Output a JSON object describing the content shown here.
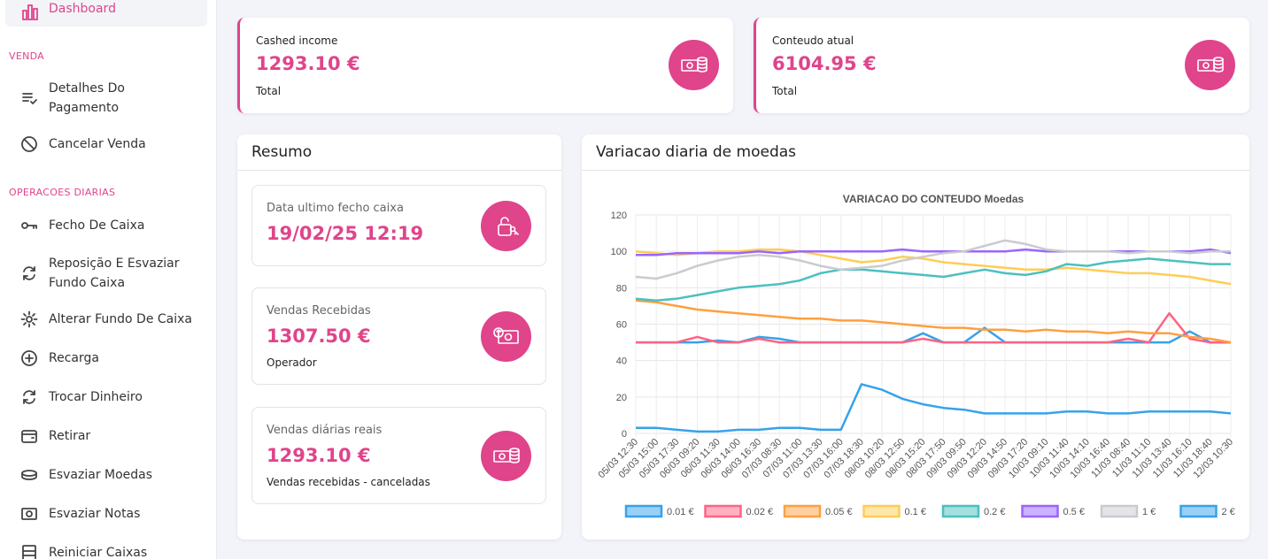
{
  "sidebar": {
    "active": {
      "label": "Dashboard",
      "icon": "bar-chart-icon"
    },
    "section_sales": "VENDA",
    "section_daily": "OPERACOES DIARIAS",
    "items_sales": [
      {
        "label": "Detalhes Do\nPagamento",
        "icon": "list-check-icon"
      },
      {
        "label": "Cancelar Venda",
        "icon": "cancel-icon"
      }
    ],
    "items_daily": [
      {
        "label": "Fecho De Caixa",
        "icon": "key-icon"
      },
      {
        "label": "Reposição E Esvaziar\nFundo Caixa",
        "icon": "sync-icon"
      },
      {
        "label": "Alterar Fundo De Caixa",
        "icon": "gear-icon"
      },
      {
        "label": "Recarga",
        "icon": "plus-circle-icon"
      },
      {
        "label": "Trocar Dinheiro",
        "icon": "sync-icon"
      },
      {
        "label": "Retirar",
        "icon": "wallet-icon"
      },
      {
        "label": "Esvaziar Moedas",
        "icon": "coins-icon"
      },
      {
        "label": "Esvaziar Notas",
        "icon": "banknote-icon"
      },
      {
        "label": "Reiniciar Caixas",
        "icon": "cashbox-icon"
      }
    ]
  },
  "top_cards": [
    {
      "title": "Cashed income",
      "value": "1293.10 €",
      "sub": "Total",
      "icon": "euro-coins-icon"
    },
    {
      "title": "Conteudo atual",
      "value": "6104.95 €",
      "sub": "Total",
      "icon": "euro-coins-icon"
    }
  ],
  "resumo": {
    "title": "Resumo",
    "items": [
      {
        "title": "Data ultimo fecho caixa",
        "value": "19/02/25 12:19",
        "sub": "",
        "icon": "lock-key-icon"
      },
      {
        "title": "Vendas Recebidas",
        "value": "1307.50 €",
        "sub": "Operador",
        "icon": "cash-in-icon"
      },
      {
        "title": "Vendas diárias reais",
        "value": "1293.10 €",
        "sub": "Vendas recebidas - canceladas",
        "icon": "euro-coins-icon"
      }
    ]
  },
  "chart_panel": {
    "title": "Variacao diaria de moedas"
  },
  "colors": {
    "accent": "#e0448b"
  },
  "chart_data": {
    "type": "line",
    "title": "VARIACAO DO CONTEUDO Moedas",
    "ylim": [
      0,
      120
    ],
    "yticks": [
      0,
      20,
      40,
      60,
      80,
      100,
      120
    ],
    "categories": [
      "05/03 12:30",
      "05/03 15:00",
      "05/03 17:30",
      "06/03 09:20",
      "06/03 11:30",
      "06/03 14:00",
      "06/03 16:30",
      "07/03 08:30",
      "07/03 11:00",
      "07/03 13:30",
      "07/03 16:00",
      "07/03 18:30",
      "08/03 10:20",
      "08/03 12:50",
      "08/03 15:20",
      "08/03 17:50",
      "09/03 09:50",
      "09/03 12:20",
      "09/03 14:50",
      "09/03 17:20",
      "10/03 09:10",
      "10/03 11:40",
      "10/03 14:10",
      "10/03 16:40",
      "11/03 08:40",
      "11/03 11:10",
      "11/03 13:40",
      "11/03 16:10",
      "11/03 18:40",
      "12/03 10:30"
    ],
    "legend": "bottom",
    "series": [
      {
        "name": "0.01 €",
        "color": "#36a2eb",
        "values": [
          50,
          50,
          50,
          50,
          51,
          50,
          53,
          52,
          50,
          50,
          50,
          50,
          50,
          50,
          55,
          50,
          50,
          58,
          50,
          50,
          50,
          50,
          50,
          50,
          50,
          50,
          50,
          56,
          50,
          50
        ]
      },
      {
        "name": "0.02 €",
        "color": "#ff6384",
        "values": [
          50,
          50,
          50,
          53,
          50,
          50,
          52,
          50,
          50,
          50,
          50,
          50,
          50,
          50,
          52,
          50,
          50,
          50,
          50,
          50,
          50,
          50,
          50,
          50,
          52,
          50,
          66,
          52,
          50,
          50
        ]
      },
      {
        "name": "0.05 €",
        "color": "#ff9f40",
        "values": [
          73,
          72,
          70,
          68,
          67,
          66,
          65,
          64,
          63,
          63,
          62,
          62,
          61,
          60,
          59,
          58,
          58,
          57,
          57,
          56,
          57,
          56,
          56,
          55,
          56,
          55,
          55,
          53,
          52,
          50
        ]
      },
      {
        "name": "0.1 €",
        "color": "#ffcd56",
        "values": [
          100,
          99,
          98,
          99,
          100,
          100,
          101,
          101,
          100,
          98,
          96,
          94,
          95,
          97,
          96,
          94,
          93,
          92,
          91,
          90,
          90,
          91,
          90,
          89,
          88,
          88,
          87,
          86,
          84,
          82
        ]
      },
      {
        "name": "0.2 €",
        "color": "#4bc0c0",
        "values": [
          74,
          73,
          74,
          76,
          78,
          80,
          81,
          82,
          84,
          88,
          90,
          90,
          89,
          88,
          87,
          86,
          88,
          90,
          88,
          87,
          89,
          93,
          92,
          94,
          95,
          96,
          95,
          94,
          93,
          93
        ]
      },
      {
        "name": "0.5 €",
        "color": "#9966ff",
        "values": [
          98,
          98,
          99,
          99,
          99,
          99,
          100,
          99,
          100,
          100,
          100,
          100,
          100,
          101,
          100,
          100,
          100,
          100,
          100,
          101,
          100,
          100,
          100,
          100,
          100,
          100,
          100,
          100,
          101,
          99
        ]
      },
      {
        "name": "1 €",
        "color": "#c9cbcf",
        "values": [
          86,
          85,
          88,
          92,
          95,
          97,
          98,
          97,
          95,
          92,
          90,
          91,
          92,
          95,
          97,
          99,
          100,
          103,
          106,
          104,
          101,
          100,
          100,
          100,
          99,
          100,
          100,
          99,
          100,
          100
        ]
      },
      {
        "name": "2 €",
        "color": "#36a2eb",
        "values": [
          3,
          3,
          2,
          1,
          1,
          2,
          2,
          3,
          3,
          2,
          2,
          27,
          24,
          19,
          16,
          14,
          13,
          11,
          11,
          11,
          11,
          12,
          12,
          11,
          11,
          12,
          12,
          12,
          12,
          11
        ]
      }
    ]
  }
}
